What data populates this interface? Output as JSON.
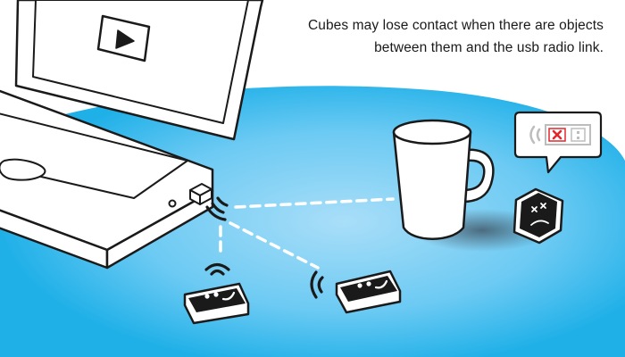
{
  "caption": "Cubes may lose contact when there are objects between them and the usb radio link.",
  "colors": {
    "floor_center": "#8fd4f6",
    "floor_edge": "#28b4ea",
    "outline": "#1a1a1a",
    "error_red": "#e2262c",
    "object_fill": "#ffffff"
  },
  "icons": [
    "laptop-icon",
    "play-icon",
    "usb-radio-dongle-icon",
    "signal-waves-icon",
    "cube-icon",
    "mug-icon",
    "speech-bubble-icon",
    "disconnected-signal-icon"
  ]
}
